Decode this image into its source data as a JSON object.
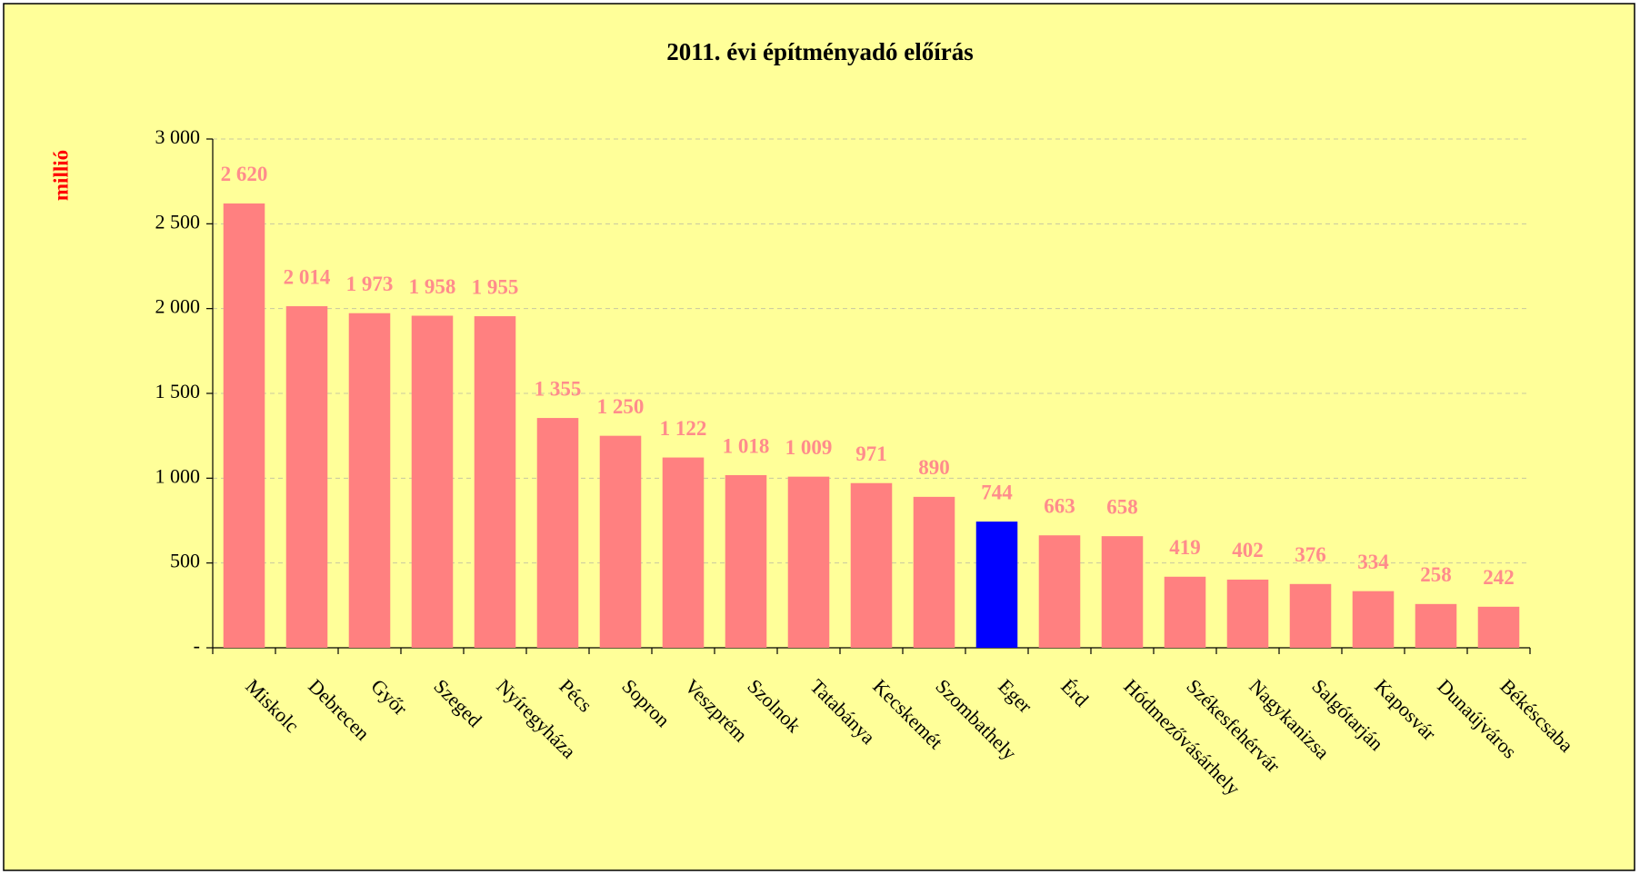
{
  "chart_data": {
    "type": "bar",
    "title": "2011. évi építményadó előírás",
    "y_label": "millió",
    "categories": [
      "Miskolc",
      "Debrecen",
      "Győr",
      "Szeged",
      "Nyíregyháza",
      "Pécs",
      "Sopron",
      "Veszprém",
      "Szolnok",
      "Tatabánya",
      "Kecskemét",
      "Szombathely",
      "Eger",
      "Érd",
      "Hódmezővásárhely",
      "Székesfehérvár",
      "Nagykanizsa",
      "Salgótarján",
      "Kaposvár",
      "Dunaújváros",
      "Békéscsaba"
    ],
    "values": [
      2620,
      2014,
      1973,
      1958,
      1955,
      1355,
      1250,
      1122,
      1018,
      1009,
      971,
      890,
      744,
      663,
      658,
      419,
      402,
      376,
      334,
      258,
      242
    ],
    "value_labels": [
      "2 620",
      "2 014",
      "1 973",
      "1 958",
      "1 955",
      "1 355",
      "1 250",
      "1 122",
      "1 018",
      "1 009",
      "971",
      "890",
      "744",
      "663",
      "658",
      "419",
      "402",
      "376",
      "334",
      "258",
      "242"
    ],
    "colors": [
      "#ff8080",
      "#ff8080",
      "#ff8080",
      "#ff8080",
      "#ff8080",
      "#ff8080",
      "#ff8080",
      "#ff8080",
      "#ff8080",
      "#ff8080",
      "#ff8080",
      "#ff8080",
      "#0000ff",
      "#ff8080",
      "#ff8080",
      "#ff8080",
      "#ff8080",
      "#ff8080",
      "#ff8080",
      "#ff8080",
      "#ff8080"
    ],
    "ylim": [
      0,
      3000
    ],
    "yticks": [
      {
        "value": 0,
        "label": "-"
      },
      500,
      {
        "value": 1000,
        "label": "1 000"
      },
      {
        "value": 1500,
        "label": "1 500"
      },
      {
        "value": 2000,
        "label": "2 000"
      },
      {
        "value": 2500,
        "label": "2 500"
      },
      {
        "value": 3000,
        "label": "3 000"
      }
    ],
    "grid": true
  }
}
